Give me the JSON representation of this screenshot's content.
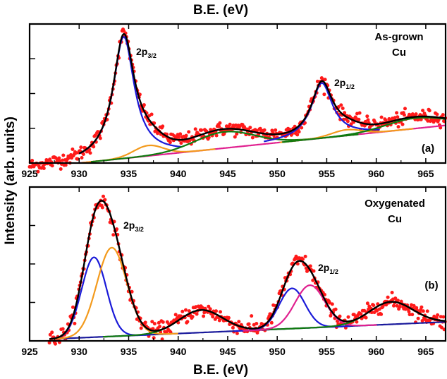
{
  "figure": {
    "top_xlabel": "B.E. (eV)",
    "bottom_xlabel": "B.E. (eV)",
    "ylabel": "Intensity (arb. units)"
  },
  "chart_data": [
    {
      "type": "line",
      "panel": "a",
      "panel_label": "(a)",
      "title_lines": [
        "As-grown",
        "Cu"
      ],
      "xlim": [
        925,
        967
      ],
      "ylim": [
        0.75,
        3.15
      ],
      "x_ticks": [
        925,
        930,
        935,
        940,
        945,
        950,
        955,
        960,
        965
      ],
      "peak_labels": [
        {
          "main": "2p",
          "sub": "3/2",
          "x": 934.5
        },
        {
          "main": "2p",
          "sub": "1/2",
          "x": 954.5
        }
      ],
      "experimental": {
        "name": "Experimental data",
        "color": "#ff1a1a",
        "x_range": [
          925,
          967
        ],
        "noise": 0.06
      },
      "background": {
        "name": "Background",
        "color": "#e0208f",
        "x_range": [
          930,
          967
        ],
        "linear": [
          [
            930,
            0.75
          ],
          [
            967,
            1.4
          ]
        ]
      },
      "components": [
        {
          "name": "2p3/2 main",
          "color": "#1a1ad8",
          "center": 934.5,
          "height": 2.1,
          "width": 1.3,
          "shape": "lorentz"
        },
        {
          "name": "2p3/2 shake-up",
          "color": "#f39a1c",
          "center": 937.0,
          "height": 0.18,
          "width": 1.5,
          "shape": "gauss"
        },
        {
          "name": "Satellite 1",
          "color": "#0f7a0f",
          "center": 944.7,
          "height": 0.28,
          "width": 3.0,
          "shape": "gauss"
        },
        {
          "name": "2p1/2 main",
          "color": "#1a1ad8",
          "center": 954.5,
          "height": 0.95,
          "width": 1.3,
          "shape": "lorentz"
        },
        {
          "name": "2p1/2 shake-up",
          "color": "#f39a1c",
          "center": 957.0,
          "height": 0.1,
          "width": 1.5,
          "shape": "gauss"
        },
        {
          "name": "Satellite 2",
          "color": "#0f7a0f",
          "center": 964.0,
          "height": 0.18,
          "width": 3.0,
          "shape": "gauss"
        }
      ],
      "fit": {
        "name": "Envelope fit",
        "color": "#000000"
      }
    },
    {
      "type": "line",
      "panel": "b",
      "panel_label": "(b)",
      "title_lines": [
        "Oxygenated",
        "Cu"
      ],
      "xlim": [
        925,
        967
      ],
      "ylim": [
        0.55,
        3.15
      ],
      "x_ticks": [
        925,
        930,
        935,
        940,
        945,
        950,
        955,
        960,
        965
      ],
      "peak_labels": [
        {
          "main": "2p",
          "sub": "3/2",
          "x": 933.5
        },
        {
          "main": "2p",
          "sub": "1/2",
          "x": 953.5
        }
      ],
      "experimental": {
        "name": "Experimental data",
        "color": "#ff1a1a",
        "x_range": [
          927,
          967
        ],
        "noise": 0.065
      },
      "background": {
        "name": "Background",
        "color": "#1a1a9c",
        "x_range": [
          927,
          967
        ],
        "linear": [
          [
            927,
            0.58
          ],
          [
            967,
            0.87
          ]
        ]
      },
      "components": [
        {
          "name": "Cu 2p3/2",
          "color": "#1a1ad8",
          "center": 931.5,
          "height": 1.35,
          "width": 1.25,
          "shape": "gauss"
        },
        {
          "name": "CuO 2p3/2",
          "color": "#f39a1c",
          "center": 933.3,
          "height": 1.5,
          "width": 1.5,
          "shape": "gauss"
        },
        {
          "name": "Satellite 1",
          "color": "#0f7a0f",
          "center": 942.3,
          "height": 0.38,
          "width": 2.2,
          "shape": "gauss"
        },
        {
          "name": "Cu 2p1/2",
          "color": "#1a1ad8",
          "center": 951.5,
          "height": 0.68,
          "width": 1.3,
          "shape": "gauss"
        },
        {
          "name": "CuO 2p1/2",
          "color": "#e0208f",
          "center": 953.3,
          "height": 0.72,
          "width": 1.5,
          "shape": "gauss"
        },
        {
          "name": "Satellite 2",
          "color": "#0f7a0f",
          "center": 961.5,
          "height": 0.38,
          "width": 2.2,
          "shape": "gauss"
        }
      ],
      "fit": {
        "name": "Envelope fit",
        "color": "#000000"
      }
    }
  ]
}
